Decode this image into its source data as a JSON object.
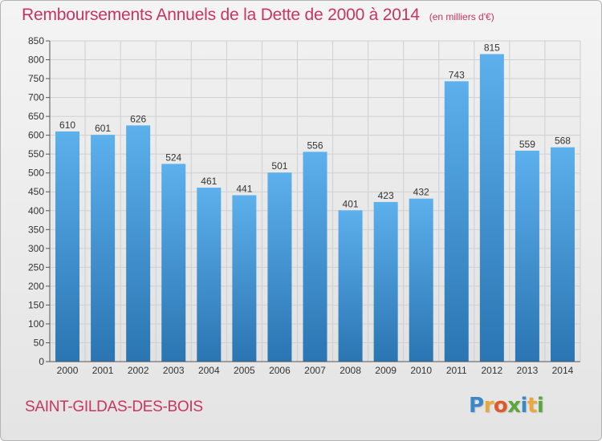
{
  "title": "Remboursements Annuels de la Dette de 2000 à 2014",
  "unit_note": "(en milliers d'€)",
  "city": "SAINT-GILDAS-DES-BOIS",
  "logo": {
    "letters": [
      "P",
      "r",
      "o",
      "x",
      "i",
      "t",
      "i"
    ],
    "colors": [
      "#3a88c8",
      "#e8a83a",
      "#e0572a",
      "#5aa83c",
      "#3a88c8",
      "#e8a83a",
      "#5aa83c"
    ]
  },
  "colors": {
    "title": "#c8355f",
    "bar_top": "#5cb0ec",
    "bar_bottom": "#2a75b2",
    "grid": "#cfcfcf"
  },
  "chart_data": {
    "type": "bar",
    "categories": [
      "2000",
      "2001",
      "2002",
      "2003",
      "2004",
      "2005",
      "2006",
      "2007",
      "2008",
      "2009",
      "2010",
      "2011",
      "2012",
      "2013",
      "2014"
    ],
    "values": [
      610,
      601,
      626,
      524,
      461,
      441,
      501,
      556,
      401,
      423,
      432,
      743,
      815,
      559,
      568
    ],
    "ylim": [
      0,
      850
    ],
    "yticks": [
      0,
      50,
      100,
      150,
      200,
      250,
      300,
      350,
      400,
      450,
      500,
      550,
      600,
      650,
      700,
      750,
      800,
      850
    ],
    "grid": true,
    "xlabel": "",
    "ylabel": ""
  }
}
